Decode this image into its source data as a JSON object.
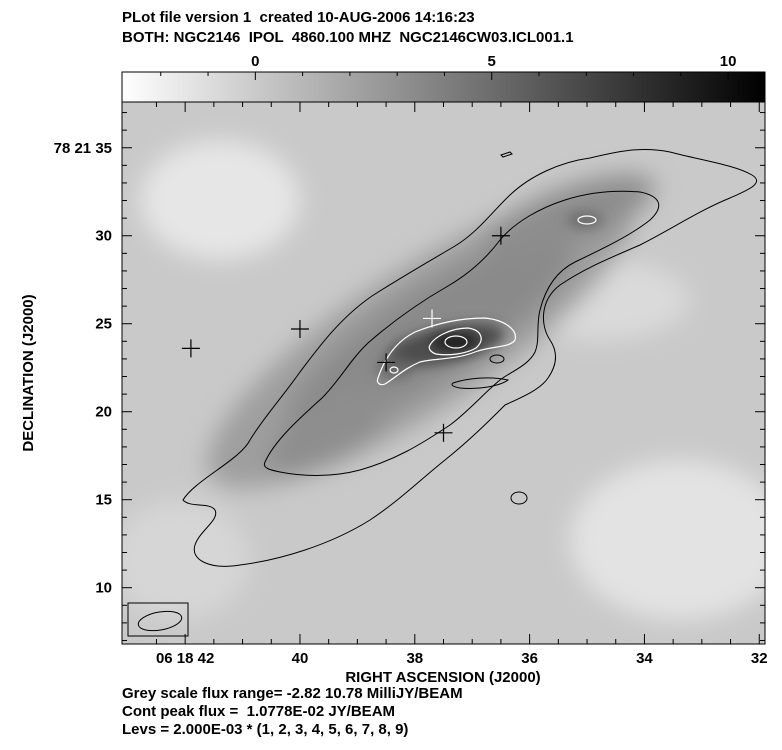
{
  "header": {
    "line1": "PLot file version 1  created 10-AUG-2006 14:16:23",
    "line2": "BOTH: NGC2146  IPOL  4860.100 MHZ  NGC2146CW03.ICL001.1"
  },
  "footer": {
    "line1": "Grey scale flux range= -2.82 10.78 MilliJY/BEAM",
    "line2": "Cont peak flux =  1.0778E-02 JY/BEAM",
    "line3": "Levs = 2.000E-03 * (1, 2, 3, 4, 5, 6, 7, 8, 9)"
  },
  "colorbar": {
    "range": [
      -2.82,
      10.78
    ],
    "ticks": [
      {
        "value": 0,
        "label": "0"
      },
      {
        "value": 5,
        "label": "5"
      },
      {
        "value": 10,
        "label": "10"
      }
    ],
    "colors": {
      "low": "#ffffff",
      "high": "#000000"
    }
  },
  "chart_data": {
    "type": "heatmap",
    "title": "BOTH: NGC2146  IPOL  4860.100 MHZ  NGC2146CW03.ICL001.1",
    "xlabel": "RIGHT ASCENSION (J2000)",
    "ylabel": "DECLINATION (J2000)",
    "x_ticks": [
      "06 18 42",
      "40",
      "38",
      "36",
      "34",
      "32"
    ],
    "y_ticks": [
      "78 21 35",
      "30",
      "25",
      "20",
      "15",
      "10"
    ],
    "x_tick_values_s": [
      42,
      40,
      38,
      36,
      34,
      32
    ],
    "y_tick_values_arcsec": [
      35,
      30,
      25,
      20,
      15,
      10
    ],
    "xlim_s": [
      43.1,
      31.9
    ],
    "ylim_arcsec": [
      6.8,
      37.6
    ],
    "grey_scale_mJy_per_beam": [
      -2.82,
      10.78
    ],
    "contour_unit_Jy_per_beam": 0.002,
    "contour_multipliers": [
      1,
      2,
      3,
      4,
      5,
      6,
      7,
      8,
      9
    ],
    "peak_flux_Jy_per_beam": 0.010778,
    "markers": [
      {
        "ra_s": 41.9,
        "dec_arcsec": 23.6
      },
      {
        "ra_s": 40.0,
        "dec_arcsec": 24.7
      },
      {
        "ra_s": 38.5,
        "dec_arcsec": 22.8
      },
      {
        "ra_s": 37.7,
        "dec_arcsec": 25.3
      },
      {
        "ra_s": 37.5,
        "dec_arcsec": 18.8
      },
      {
        "ra_s": 36.5,
        "dec_arcsec": 30.0
      }
    ]
  }
}
